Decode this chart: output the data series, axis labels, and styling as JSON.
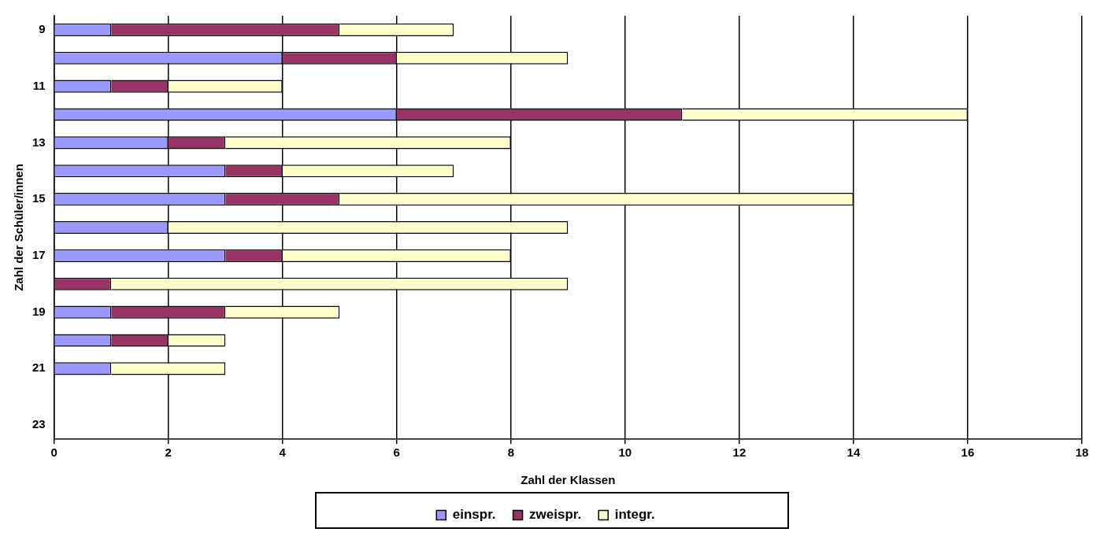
{
  "chart_data": {
    "type": "bar",
    "orientation": "horizontal",
    "stacked": true,
    "xlabel": "Zahl der Klassen",
    "ylabel": "Zahl der Schüler/innen",
    "categories": [
      "9",
      null,
      "11",
      null,
      "13",
      null,
      "15",
      null,
      "17",
      null,
      "19",
      null,
      "21",
      null,
      "23"
    ],
    "series": [
      {
        "name": "einspr.",
        "color": "#9999ff",
        "values": [
          1,
          4,
          1,
          6,
          2,
          3,
          3,
          2,
          3,
          0,
          1,
          1,
          1,
          null,
          null
        ]
      },
      {
        "name": "zweispr.",
        "color": "#993366",
        "values": [
          4,
          2,
          1,
          5,
          1,
          1,
          2,
          0,
          1,
          1,
          2,
          1,
          0,
          null,
          null
        ]
      },
      {
        "name": "integr.",
        "color": "#ffffcc",
        "values": [
          2,
          3,
          2,
          5,
          5,
          3,
          9,
          7,
          4,
          8,
          2,
          1,
          2,
          null,
          null
        ]
      }
    ],
    "xlim": [
      0,
      18
    ],
    "xticks": [
      0,
      2,
      4,
      6,
      8,
      10,
      12,
      14,
      16,
      18
    ],
    "grid": "x",
    "legend": "bottom"
  }
}
